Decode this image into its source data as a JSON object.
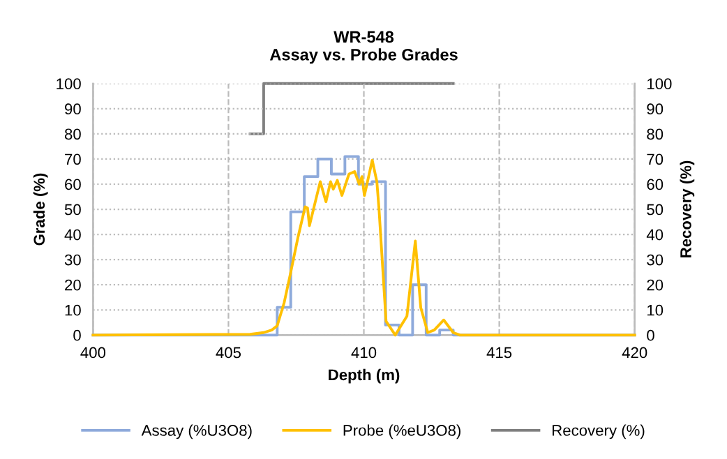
{
  "chart_data": {
    "type": "line",
    "title": "WR-548\nAssay vs. Probe Grades",
    "xlabel": "Depth (m)",
    "ylabel": "Grade (%)",
    "y2label": "Recovery (%)",
    "xlim": [
      400,
      420
    ],
    "xticks": [
      400,
      405,
      410,
      415,
      420
    ],
    "ylim": [
      0,
      100
    ],
    "yticks": [
      0,
      10,
      20,
      30,
      40,
      50,
      60,
      70,
      80,
      90,
      100
    ],
    "y2lim": [
      0,
      100
    ],
    "y2ticks": [
      0,
      10,
      20,
      30,
      40,
      50,
      60,
      70,
      80,
      90,
      100
    ],
    "grid": true,
    "legend": "bottom",
    "series": [
      {
        "name": "Assay (%U3O8)",
        "type": "step",
        "color": "#8eaadb",
        "x": [
          400,
          406.8,
          407.3,
          407.8,
          408.3,
          408.8,
          409.3,
          409.8,
          410.3,
          410.8,
          411.3,
          411.8,
          412.3,
          412.8,
          413.3,
          420
        ],
        "values": [
          0,
          11,
          49,
          63,
          70,
          64,
          71,
          60,
          61,
          4,
          0,
          20,
          0,
          2,
          0,
          0
        ]
      },
      {
        "name": "Probe (%eU3O8)",
        "color": "#ffc000",
        "x": [
          400,
          405.8,
          406.3,
          406.6,
          406.8,
          407.06,
          407.28,
          407.57,
          407.83,
          407.92,
          407.99,
          408.39,
          408.6,
          408.77,
          408.87,
          409.02,
          409.19,
          409.45,
          409.66,
          409.83,
          409.93,
          410.02,
          410.31,
          410.48,
          410.56,
          410.82,
          411.16,
          411.59,
          411.9,
          412.1,
          412.36,
          412.6,
          412.95,
          413.3,
          413.55,
          420
        ],
        "values": [
          0,
          0.3,
          1,
          2,
          3.7,
          13,
          24,
          39,
          51,
          50.5,
          43.5,
          61,
          53,
          61,
          58,
          61.5,
          55.5,
          64,
          65,
          60,
          63,
          55.5,
          69.5,
          61,
          50,
          5.5,
          0,
          7.5,
          37.4,
          11,
          1,
          2,
          6,
          1,
          0,
          0
        ]
      },
      {
        "name": "Recovery (%)",
        "type": "step",
        "axis": "y2",
        "color": "#7f7f7f",
        "x": [
          405.8,
          406.3,
          413.3
        ],
        "values": [
          80,
          100,
          100
        ]
      }
    ]
  }
}
